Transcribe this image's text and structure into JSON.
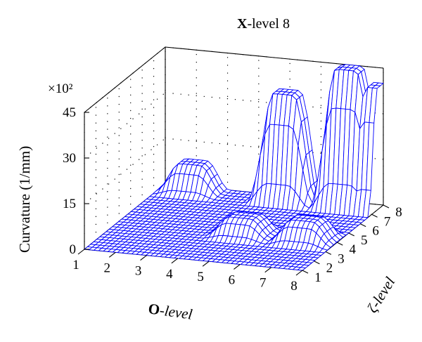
{
  "chart_data": {
    "type": "surface3d",
    "title_bold": "X",
    "title_rest": "-level 8",
    "xlabel_bold": "O",
    "xlabel_rest": "-level",
    "ylabel_greek": "ζ",
    "ylabel_rest": "-level",
    "zlabel": "Curvature (1/mm)",
    "z_multiplier": "×10²",
    "x_ticks": [
      "1",
      "2",
      "3",
      "4",
      "5",
      "6",
      "7",
      "8"
    ],
    "y_ticks": [
      "1",
      "2",
      "3",
      "4",
      "5",
      "6",
      "7",
      "8"
    ],
    "z_ticks": [
      "0",
      "15",
      "30",
      "45"
    ],
    "xlim": [
      1,
      8
    ],
    "ylim": [
      1,
      8
    ],
    "zlim": [
      0,
      45
    ],
    "surface_color": "#0000ff",
    "grid": true,
    "peaks": [
      {
        "O_level": 5,
        "zeta_level": 8,
        "curvature": 35
      },
      {
        "O_level": 7,
        "zeta_level": 8,
        "curvature": 45
      },
      {
        "O_level": 8,
        "zeta_level": 8,
        "curvature": 40
      },
      {
        "O_level": 2,
        "zeta_level": 8,
        "curvature": 9
      },
      {
        "O_level": 5,
        "zeta_level": 4,
        "curvature": 6
      },
      {
        "O_level": 7,
        "zeta_level": 4,
        "curvature": 7
      }
    ]
  }
}
